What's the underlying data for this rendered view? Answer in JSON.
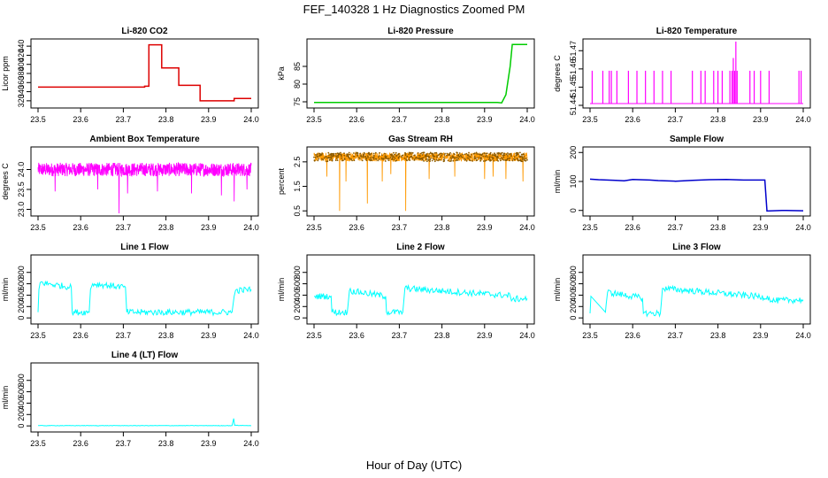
{
  "figure": {
    "title": "FEF_140328  1 Hz Diagnostics Zoomed PM",
    "xlabel": "Hour of Day (UTC)"
  },
  "chart_data": [
    {
      "type": "line",
      "title": "Li-820 CO2",
      "ylabel": "Licor ppm",
      "color": "#dd0000",
      "xlim": [
        23.5,
        24.0
      ],
      "ylim": [
        310,
        450
      ],
      "xticks": [
        "23.5",
        "23.6",
        "23.7",
        "23.8",
        "23.9",
        "24.0"
      ],
      "yticks": [
        "320",
        "340",
        "360",
        "380",
        "400",
        "420",
        "440"
      ],
      "x": [
        23.5,
        23.75,
        23.75,
        23.76,
        23.76,
        23.79,
        23.79,
        23.83,
        23.83,
        23.88,
        23.88,
        23.96,
        23.96,
        24.0
      ],
      "y": [
        350,
        350,
        352,
        352,
        443,
        443,
        392,
        392,
        354,
        354,
        320,
        320,
        325,
        325
      ]
    },
    {
      "type": "line",
      "title": "Li-820 Pressure",
      "ylabel": "kPa",
      "color": "#00cc00",
      "xlim": [
        23.5,
        24.0
      ],
      "ylim": [
        74,
        92
      ],
      "xticks": [
        "23.5",
        "23.6",
        "23.7",
        "23.8",
        "23.9",
        "24.0"
      ],
      "yticks": [
        "75",
        "80",
        "85"
      ],
      "x": [
        23.5,
        23.93,
        23.94,
        23.95,
        23.96,
        23.965,
        24.0
      ],
      "y": [
        74.8,
        74.8,
        74.7,
        77,
        85,
        91.2,
        91.2
      ]
    },
    {
      "type": "line",
      "title": "Li-820 Temperature",
      "ylabel": "degrees C",
      "color": "#ff00ff",
      "xlim": [
        23.5,
        24.0
      ],
      "ylim": [
        51.44,
        51.475
      ],
      "xticks": [
        "23.5",
        "23.6",
        "23.7",
        "23.8",
        "23.9",
        "24.0"
      ],
      "yticks": [
        "51.44",
        "51.45",
        "51.46",
        "51.47"
      ],
      "baseline": 51.441,
      "spikes": [
        {
          "x": 23.505,
          "y": 51.459
        },
        {
          "x": 23.53,
          "y": 51.459
        },
        {
          "x": 23.545,
          "y": 51.459
        },
        {
          "x": 23.55,
          "y": 51.459
        },
        {
          "x": 23.563,
          "y": 51.459
        },
        {
          "x": 23.59,
          "y": 51.459
        },
        {
          "x": 23.61,
          "y": 51.459
        },
        {
          "x": 23.63,
          "y": 51.459
        },
        {
          "x": 23.65,
          "y": 51.459
        },
        {
          "x": 23.67,
          "y": 51.459
        },
        {
          "x": 23.69,
          "y": 51.459
        },
        {
          "x": 23.74,
          "y": 51.459
        },
        {
          "x": 23.76,
          "y": 51.459
        },
        {
          "x": 23.77,
          "y": 51.459
        },
        {
          "x": 23.79,
          "y": 51.459
        },
        {
          "x": 23.8,
          "y": 51.459
        },
        {
          "x": 23.81,
          "y": 51.459
        },
        {
          "x": 23.828,
          "y": 51.459
        },
        {
          "x": 23.833,
          "y": 51.459
        },
        {
          "x": 23.836,
          "y": 51.466
        },
        {
          "x": 23.839,
          "y": 51.459
        },
        {
          "x": 23.842,
          "y": 51.475
        },
        {
          "x": 23.845,
          "y": 51.459
        },
        {
          "x": 23.875,
          "y": 51.459
        },
        {
          "x": 23.885,
          "y": 51.459
        },
        {
          "x": 23.9,
          "y": 51.459
        },
        {
          "x": 23.92,
          "y": 51.459
        },
        {
          "x": 23.99,
          "y": 51.459
        },
        {
          "x": 23.995,
          "y": 51.459
        }
      ]
    },
    {
      "type": "line",
      "title": "Ambient Box Temperature",
      "ylabel": "degrees C",
      "color": "#ff00ff",
      "xlim": [
        23.5,
        24.0
      ],
      "ylim": [
        22.9,
        24.5
      ],
      "xticks": [
        "23.5",
        "23.6",
        "23.7",
        "23.8",
        "23.9",
        "24.0"
      ],
      "yticks": [
        "23.0",
        "23.5",
        "24.0"
      ],
      "band": {
        "center": 24.0,
        "half_width": 0.17
      },
      "dips": [
        {
          "x": 23.69,
          "y": 22.9
        },
        {
          "x": 23.54,
          "y": 23.45
        },
        {
          "x": 23.64,
          "y": 23.5
        },
        {
          "x": 23.71,
          "y": 23.4
        },
        {
          "x": 23.78,
          "y": 23.45
        },
        {
          "x": 23.86,
          "y": 23.4
        },
        {
          "x": 23.93,
          "y": 23.35
        },
        {
          "x": 23.96,
          "y": 23.2
        },
        {
          "x": 23.99,
          "y": 23.5
        }
      ]
    },
    {
      "type": "scatter",
      "title": "Gas Stream RH",
      "ylabel": "percent",
      "color": "#ff9900",
      "xlim": [
        23.5,
        24.0
      ],
      "ylim": [
        0.4,
        3.0
      ],
      "xticks": [
        "23.5",
        "23.6",
        "23.7",
        "23.8",
        "23.9",
        "24.0"
      ],
      "yticks": [
        "0.5",
        "1.5",
        "2.5"
      ],
      "band": {
        "center": 2.7,
        "half_width": 0.18
      },
      "dips": [
        {
          "x": 23.56,
          "y": 0.5
        },
        {
          "x": 23.575,
          "y": 1.7
        },
        {
          "x": 23.625,
          "y": 0.8
        },
        {
          "x": 23.66,
          "y": 1.7
        },
        {
          "x": 23.715,
          "y": 0.5
        },
        {
          "x": 23.77,
          "y": 1.8
        },
        {
          "x": 23.83,
          "y": 1.9
        },
        {
          "x": 23.9,
          "y": 1.8
        },
        {
          "x": 23.92,
          "y": 1.9
        },
        {
          "x": 23.95,
          "y": 1.8
        },
        {
          "x": 23.99,
          "y": 1.7
        },
        {
          "x": 23.53,
          "y": 1.9
        },
        {
          "x": 23.68,
          "y": 2.0
        }
      ]
    },
    {
      "type": "line",
      "title": "Sample Flow",
      "ylabel": "ml/min",
      "color": "#0000cc",
      "xlim": [
        23.5,
        24.0
      ],
      "ylim": [
        -10,
        210
      ],
      "xticks": [
        "23.5",
        "23.6",
        "23.7",
        "23.8",
        "23.9",
        "24.0"
      ],
      "yticks": [
        "0",
        "100",
        "200"
      ],
      "x": [
        23.5,
        23.52,
        23.56,
        23.58,
        23.6,
        23.64,
        23.66,
        23.7,
        23.74,
        23.78,
        23.82,
        23.86,
        23.91,
        23.915,
        23.95,
        24.0
      ],
      "y": [
        108,
        106,
        104,
        102,
        107,
        105,
        103,
        101,
        104,
        106,
        107,
        105,
        105,
        -2,
        0,
        -1
      ]
    },
    {
      "type": "line",
      "title": "Line 1 Flow",
      "ylabel": "ml/min",
      "color": "#00ffff",
      "xlim": [
        23.5,
        24.0
      ],
      "ylim": [
        -60,
        1060
      ],
      "xticks": [
        "23.5",
        "23.6",
        "23.7",
        "23.8",
        "23.9",
        "24.0"
      ],
      "yticks": [
        "0",
        "200",
        "400",
        "600",
        "800"
      ],
      "noise": 55,
      "x": [
        23.5,
        23.502,
        23.505,
        23.578,
        23.58,
        23.62,
        23.623,
        23.628,
        23.705,
        23.708,
        23.955,
        23.96,
        23.963,
        24.0
      ],
      "y": [
        100,
        500,
        620,
        540,
        100,
        100,
        500,
        600,
        540,
        100,
        100,
        380,
        480,
        500
      ]
    },
    {
      "type": "line",
      "title": "Line 2 Flow",
      "ylabel": "ml/min",
      "color": "#00ffff",
      "xlim": [
        23.5,
        24.0
      ],
      "ylim": [
        -60,
        1060
      ],
      "xticks": [
        "23.5",
        "23.6",
        "23.7",
        "23.8",
        "23.9",
        "24.0"
      ],
      "yticks": [
        "0",
        "200",
        "400",
        "600",
        "800"
      ],
      "noise": 55,
      "x": [
        23.5,
        23.502,
        23.54,
        23.542,
        23.578,
        23.58,
        23.583,
        23.668,
        23.67,
        23.708,
        23.71,
        23.713,
        23.96,
        23.963,
        23.966,
        24.0
      ],
      "y": [
        380,
        380,
        380,
        100,
        100,
        250,
        480,
        380,
        100,
        100,
        250,
        520,
        390,
        300,
        330,
        340
      ]
    },
    {
      "type": "line",
      "title": "Line 3 Flow",
      "ylabel": "ml/min",
      "color": "#00ffff",
      "xlim": [
        23.5,
        24.0
      ],
      "ylim": [
        -60,
        1060
      ],
      "xticks": [
        "23.5",
        "23.6",
        "23.7",
        "23.8",
        "23.9",
        "24.0"
      ],
      "yticks": [
        "0",
        "200",
        "400",
        "600",
        "800"
      ],
      "noise": 55,
      "x": [
        23.5,
        23.502,
        23.536,
        23.538,
        23.541,
        23.623,
        23.625,
        23.665,
        23.667,
        23.67,
        23.92,
        23.923,
        23.926,
        24.0
      ],
      "y": [
        80,
        380,
        100,
        250,
        450,
        350,
        80,
        80,
        250,
        520,
        360,
        280,
        300,
        320
      ]
    },
    {
      "type": "line",
      "title": "Line 4 (LT) Flow",
      "ylabel": "ml/min",
      "color": "#00ffff",
      "xlim": [
        23.5,
        24.0
      ],
      "ylim": [
        -60,
        1060
      ],
      "xticks": [
        "23.5",
        "23.6",
        "23.7",
        "23.8",
        "23.9",
        "24.0"
      ],
      "yticks": [
        "0",
        "200",
        "400",
        "600",
        "800"
      ],
      "noise": 4,
      "x": [
        23.5,
        23.955,
        23.957,
        23.959,
        23.961,
        24.0
      ],
      "y": [
        5,
        5,
        70,
        130,
        10,
        5
      ]
    }
  ]
}
